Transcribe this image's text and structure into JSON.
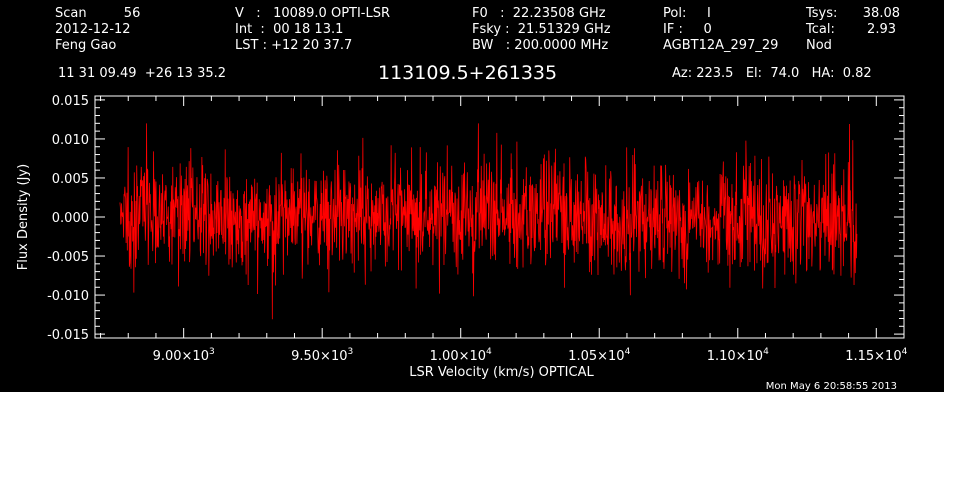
{
  "header": {
    "col1": {
      "l1": "Scan         56",
      "l2": "2012-12-12",
      "l3": "Feng Gao"
    },
    "col2": {
      "l1": "V   :   10089.0 OPTI-LSR",
      "l2": "Int  :  00 18 13.1",
      "l3": "LST : +12 20 37.7"
    },
    "col3": {
      "l1": "F0   :  22.23508 GHz",
      "l2": "Fsky :  21.51329 GHz",
      "l3": "BW   : 200.0000 MHz"
    },
    "col4": {
      "l1": "Pol:     I",
      "l2": "IF :     0",
      "l3": "AGBT12A_297_29"
    },
    "col5": {
      "l1": "Tsys:",
      "l2": "Tcal:",
      "l3": "Nod"
    },
    "col6": {
      "l1": "38.08",
      "l2": "2.93"
    },
    "coords": "11 31 09.49  +26 13 35.2",
    "source": "113109.5+261335",
    "pointing": "Az: 223.5   El:  74.0   HA:  0.82"
  },
  "footer": {
    "timestamp": "Mon May  6 20:58:55 2013"
  },
  "colors": {
    "background": "#000000",
    "axes": "#ffffff",
    "spectrum": "#ff0000"
  },
  "chart_data": {
    "type": "line",
    "xlabel": "LSR Velocity (km/s) OPTICAL",
    "ylabel": "Flux Density (Jy)",
    "xlim": [
      8680,
      11600
    ],
    "ylim": [
      -0.0155,
      0.0155
    ],
    "x_range_of_data": [
      8770,
      11430
    ],
    "x_ticks": [
      9000,
      9500,
      10000,
      10500,
      11000,
      11500
    ],
    "x_tick_labels": [
      {
        "mant": "9.00×10",
        "exp": "3"
      },
      {
        "mant": "9.50×10",
        "exp": "3"
      },
      {
        "mant": "1.00×10",
        "exp": "4"
      },
      {
        "mant": "1.05×10",
        "exp": "4"
      },
      {
        "mant": "1.10×10",
        "exp": "4"
      },
      {
        "mant": "1.15×10",
        "exp": "4"
      }
    ],
    "y_ticks": [
      -0.015,
      -0.01,
      -0.005,
      0.0,
      0.005,
      0.01,
      0.015
    ],
    "y_tick_labels": [
      "-0.015",
      "-0.010",
      "-0.005",
      "0.000",
      "0.005",
      "0.010",
      "0.015"
    ],
    "series": [
      {
        "mean": 0.0,
        "rms": 0.0035,
        "approx_peak_max": 0.012,
        "approx_peak_min": -0.0135,
        "n_channels": 1800
      }
    ]
  }
}
